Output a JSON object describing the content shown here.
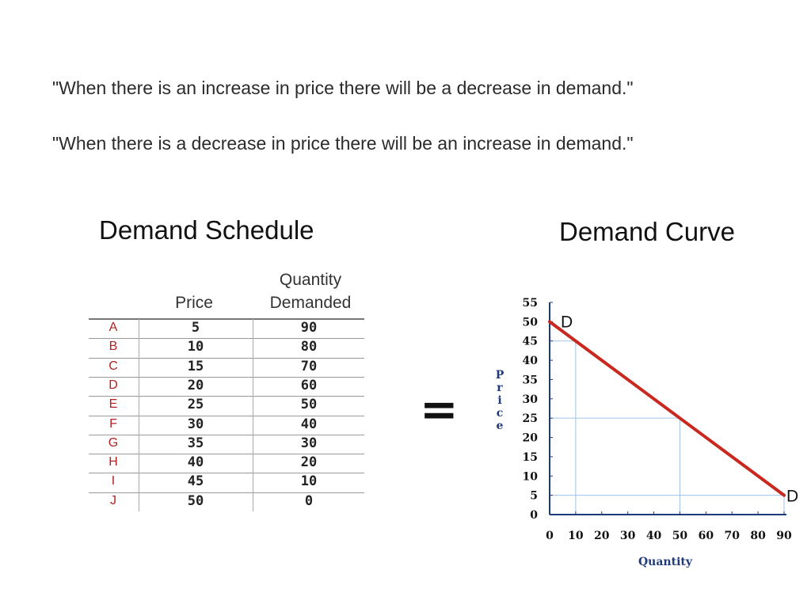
{
  "quotes": [
    "\"When there is an increase in price there will be a decrease in demand.\"",
    "\"When there is a decrease in price there will be an increase in demand.\""
  ],
  "schedule": {
    "title": "Demand Schedule",
    "price_header": "Price",
    "quantity_header_line1": "Quantity",
    "quantity_header_line2": "Demanded",
    "rows": [
      {
        "label": "A",
        "price": "5",
        "quantity": "90"
      },
      {
        "label": "B",
        "price": "10",
        "quantity": "80"
      },
      {
        "label": "C",
        "price": "15",
        "quantity": "70"
      },
      {
        "label": "D",
        "price": "20",
        "quantity": "60"
      },
      {
        "label": "E",
        "price": "25",
        "quantity": "50"
      },
      {
        "label": "F",
        "price": "30",
        "quantity": "40"
      },
      {
        "label": "G",
        "price": "35",
        "quantity": "30"
      },
      {
        "label": "H",
        "price": "40",
        "quantity": "20"
      },
      {
        "label": "I",
        "price": "45",
        "quantity": "10"
      },
      {
        "label": "J",
        "price": "50",
        "quantity": "0"
      }
    ],
    "row_label_color": "#b22222"
  },
  "equals_sign": "=",
  "chart_data": {
    "type": "line",
    "title": "Demand Curve",
    "xlabel": "Quantity",
    "ylabel": "Price",
    "xlim": [
      0,
      90
    ],
    "ylim": [
      0,
      55
    ],
    "xticks": [
      "0",
      "10",
      "20",
      "30",
      "40",
      "50",
      "60",
      "70",
      "80",
      "90"
    ],
    "yticks": [
      "0",
      "5",
      "10",
      "15",
      "20",
      "25",
      "30",
      "35",
      "40",
      "45",
      "50",
      "55"
    ],
    "series": [
      {
        "name": "D",
        "color": "#c8281e",
        "x": [
          0,
          10,
          20,
          30,
          40,
          50,
          60,
          70,
          80,
          90
        ],
        "y": [
          50,
          45,
          40,
          35,
          30,
          25,
          20,
          15,
          10,
          5
        ]
      }
    ],
    "end_labels": [
      "D",
      "D"
    ],
    "guide_points": [
      {
        "x": 10,
        "y": 45
      },
      {
        "x": 50,
        "y": 25
      },
      {
        "x": 90,
        "y": 5
      }
    ],
    "guide_color": "#9fc3e6",
    "axis_color": "#1f3a7a",
    "grid": false,
    "legend": "none"
  }
}
